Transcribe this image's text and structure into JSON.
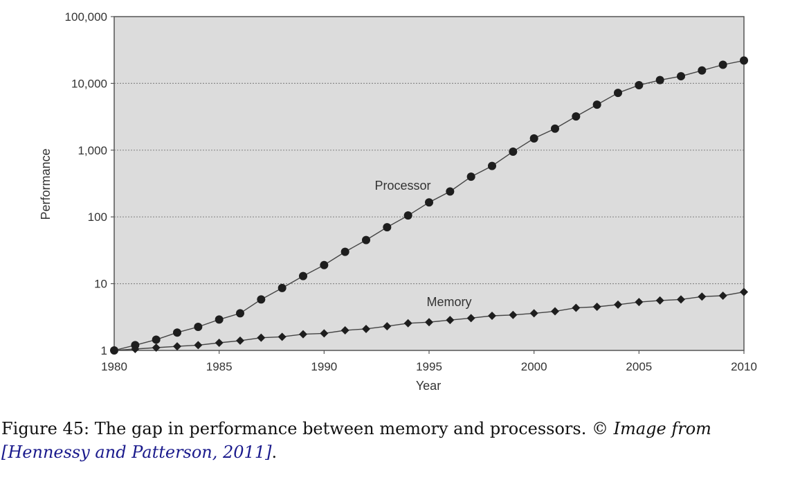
{
  "chart_data": {
    "type": "line",
    "title": "",
    "xlabel": "Year",
    "ylabel": "Performance",
    "xlim": [
      1980,
      2010
    ],
    "ylim": [
      1,
      100000
    ],
    "yscale": "log",
    "grid": "horizontal dotted",
    "plot_background": "#dcdcdc",
    "xticks": [
      1980,
      1985,
      1990,
      1995,
      2000,
      2005,
      2010
    ],
    "xtick_labels": [
      "1980",
      "1985",
      "1990",
      "1995",
      "2000",
      "2005",
      "2010"
    ],
    "yticks": [
      1,
      10,
      100,
      1000,
      10000,
      100000
    ],
    "ytick_labels": [
      "1",
      "10",
      "100",
      "1,000",
      "10,000",
      "100,000"
    ],
    "x": [
      1980,
      1981,
      1982,
      1983,
      1984,
      1985,
      1986,
      1987,
      1988,
      1989,
      1990,
      1991,
      1992,
      1993,
      1994,
      1995,
      1996,
      1997,
      1998,
      1999,
      2000,
      2001,
      2002,
      2003,
      2004,
      2005,
      2006,
      2007,
      2008,
      2009,
      2010
    ],
    "series": [
      {
        "name": "Processor",
        "marker": "circle",
        "values": [
          1,
          1.2,
          1.45,
          1.85,
          2.25,
          2.9,
          3.6,
          5.8,
          8.6,
          13,
          19,
          30,
          45,
          70,
          105,
          165,
          240,
          400,
          580,
          950,
          1500,
          2100,
          3200,
          4800,
          7200,
          9400,
          11200,
          12800,
          15600,
          19000,
          22000
        ]
      },
      {
        "name": "Memory",
        "marker": "diamond",
        "values": [
          1,
          1.05,
          1.1,
          1.15,
          1.2,
          1.3,
          1.4,
          1.55,
          1.6,
          1.75,
          1.8,
          2.0,
          2.1,
          2.3,
          2.55,
          2.65,
          2.85,
          3.05,
          3.3,
          3.4,
          3.6,
          3.85,
          4.35,
          4.5,
          4.85,
          5.3,
          5.6,
          5.8,
          6.4,
          6.6,
          7.5
        ]
      }
    ],
    "colors": {
      "line": "#444444",
      "marker": "#1e1e1e",
      "grid": "#8a8a8a",
      "frame": "#555555"
    }
  },
  "caption": {
    "prefix": "Figure 45: The gap in performance between memory and processors. ©",
    "italic_text": "Image from",
    "ref_text": "[Hennessy and Patterson, 2011]",
    "suffix": "."
  }
}
